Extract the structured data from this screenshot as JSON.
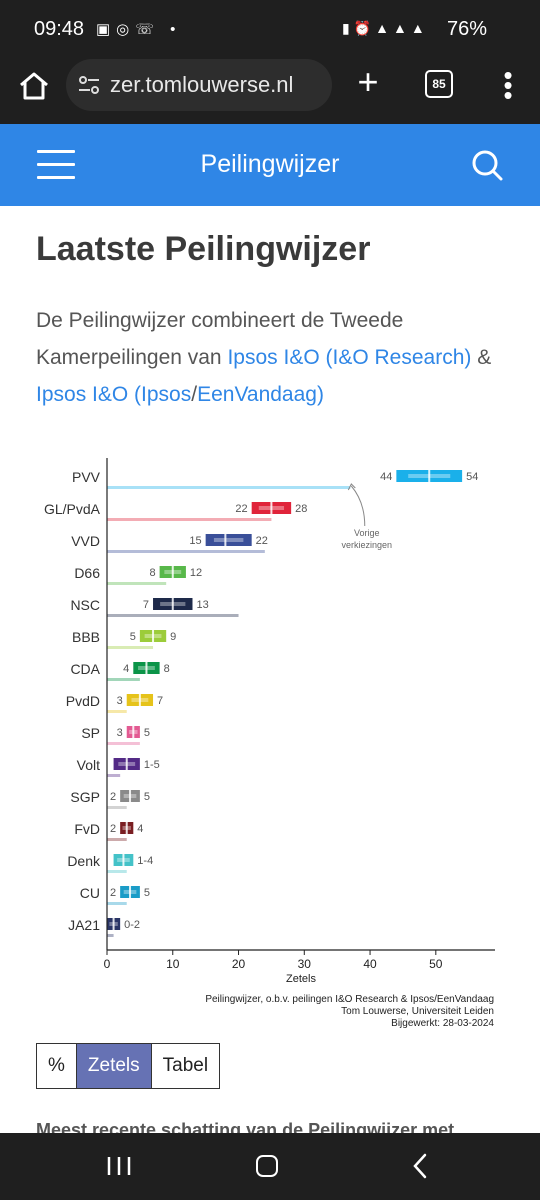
{
  "status_bar": {
    "time": "09:48",
    "battery": "76%"
  },
  "browser": {
    "url": "zer.tomlouwerse.nl",
    "tab_count": "85"
  },
  "site": {
    "title": "Peilingwijzer"
  },
  "page": {
    "heading": "Laatste Peilingwijzer",
    "intro_prefix": "De Peilingwijzer combineert de Tweede Kamerpeilingen van ",
    "link1": "Ipsos I&O (I&O Research)",
    "amp": " & ",
    "link2a": "Ipsos I&O (Ipsos",
    "slash": "/",
    "link2b": "EenVandaag",
    "close_paren": ")"
  },
  "chart_data": {
    "type": "bar",
    "xlabel": "Zetels",
    "xlim": [
      0,
      59
    ],
    "xticks": [
      0,
      10,
      20,
      30,
      40,
      50
    ],
    "annotation": [
      "Vorige",
      "verkiezingen"
    ],
    "source": [
      "Peilingwijzer, o.b.v. peilingen I&O Research & Ipsos/EenVandaag",
      "Tom Louwerse, Universiteit Leiden",
      "Bijgewerkt: 28-03-2024"
    ],
    "parties": [
      {
        "name": "PVV",
        "low": 44,
        "high": 54,
        "estimate": 49,
        "previous": 37,
        "color": "#1ab0ea",
        "label_low": "44",
        "label_high": "54"
      },
      {
        "name": "GL/PvdA",
        "low": 22,
        "high": 28,
        "estimate": 25,
        "previous": 25,
        "color": "#e0243a",
        "label_low": "22",
        "label_high": "28"
      },
      {
        "name": "VVD",
        "low": 15,
        "high": 22,
        "estimate": 18,
        "previous": 24,
        "color": "#3a4f99",
        "label_low": "15",
        "label_high": "22"
      },
      {
        "name": "D66",
        "low": 8,
        "high": 12,
        "estimate": 10,
        "previous": 9,
        "color": "#58b84a",
        "label_low": "8",
        "label_high": "12"
      },
      {
        "name": "NSC",
        "low": 7,
        "high": 13,
        "estimate": 10,
        "previous": 20,
        "color": "#1e2a4a",
        "label_low": "7",
        "label_high": "13"
      },
      {
        "name": "BBB",
        "low": 5,
        "high": 9,
        "estimate": 7,
        "previous": 7,
        "color": "#9ccc3a",
        "label_low": "5",
        "label_high": "9"
      },
      {
        "name": "CDA",
        "low": 4,
        "high": 8,
        "estimate": 6,
        "previous": 5,
        "color": "#0b9448",
        "label_low": "4",
        "label_high": "8"
      },
      {
        "name": "PvdD",
        "low": 3,
        "high": 7,
        "estimate": 5,
        "previous": 3,
        "color": "#e6c31a",
        "label_low": "3",
        "label_high": "7"
      },
      {
        "name": "SP",
        "low": 3,
        "high": 5,
        "estimate": 4,
        "previous": 5,
        "color": "#e35a92",
        "label_low": "3",
        "label_high": "5"
      },
      {
        "name": "Volt",
        "low": 1,
        "high": 5,
        "estimate": 3,
        "previous": 2,
        "color": "#532a86",
        "label_low": "",
        "label_high": "1-5"
      },
      {
        "name": "SGP",
        "low": 2,
        "high": 5,
        "estimate": 3.5,
        "previous": 3,
        "color": "#8a8a8a",
        "label_low": "2",
        "label_high": "5"
      },
      {
        "name": "FvD",
        "low": 2,
        "high": 4,
        "estimate": 3,
        "previous": 3,
        "color": "#7a1e22",
        "label_low": "2",
        "label_high": "4"
      },
      {
        "name": "Denk",
        "low": 1,
        "high": 4,
        "estimate": 2.5,
        "previous": 3,
        "color": "#44c2c8",
        "label_low": "",
        "label_high": "1-4"
      },
      {
        "name": "CU",
        "low": 2,
        "high": 5,
        "estimate": 3.5,
        "previous": 3,
        "color": "#1a9cc7",
        "label_low": "2",
        "label_high": "5"
      },
      {
        "name": "JA21",
        "low": 0,
        "high": 2,
        "estimate": 1,
        "previous": 1,
        "color": "#2a3566",
        "label_low": "",
        "label_high": "0-2"
      }
    ]
  },
  "toggle": {
    "percent": "%",
    "seats": "Zetels",
    "table": "Tabel"
  },
  "teaser": "Meest recente schatting van de Peilingwijzer met"
}
